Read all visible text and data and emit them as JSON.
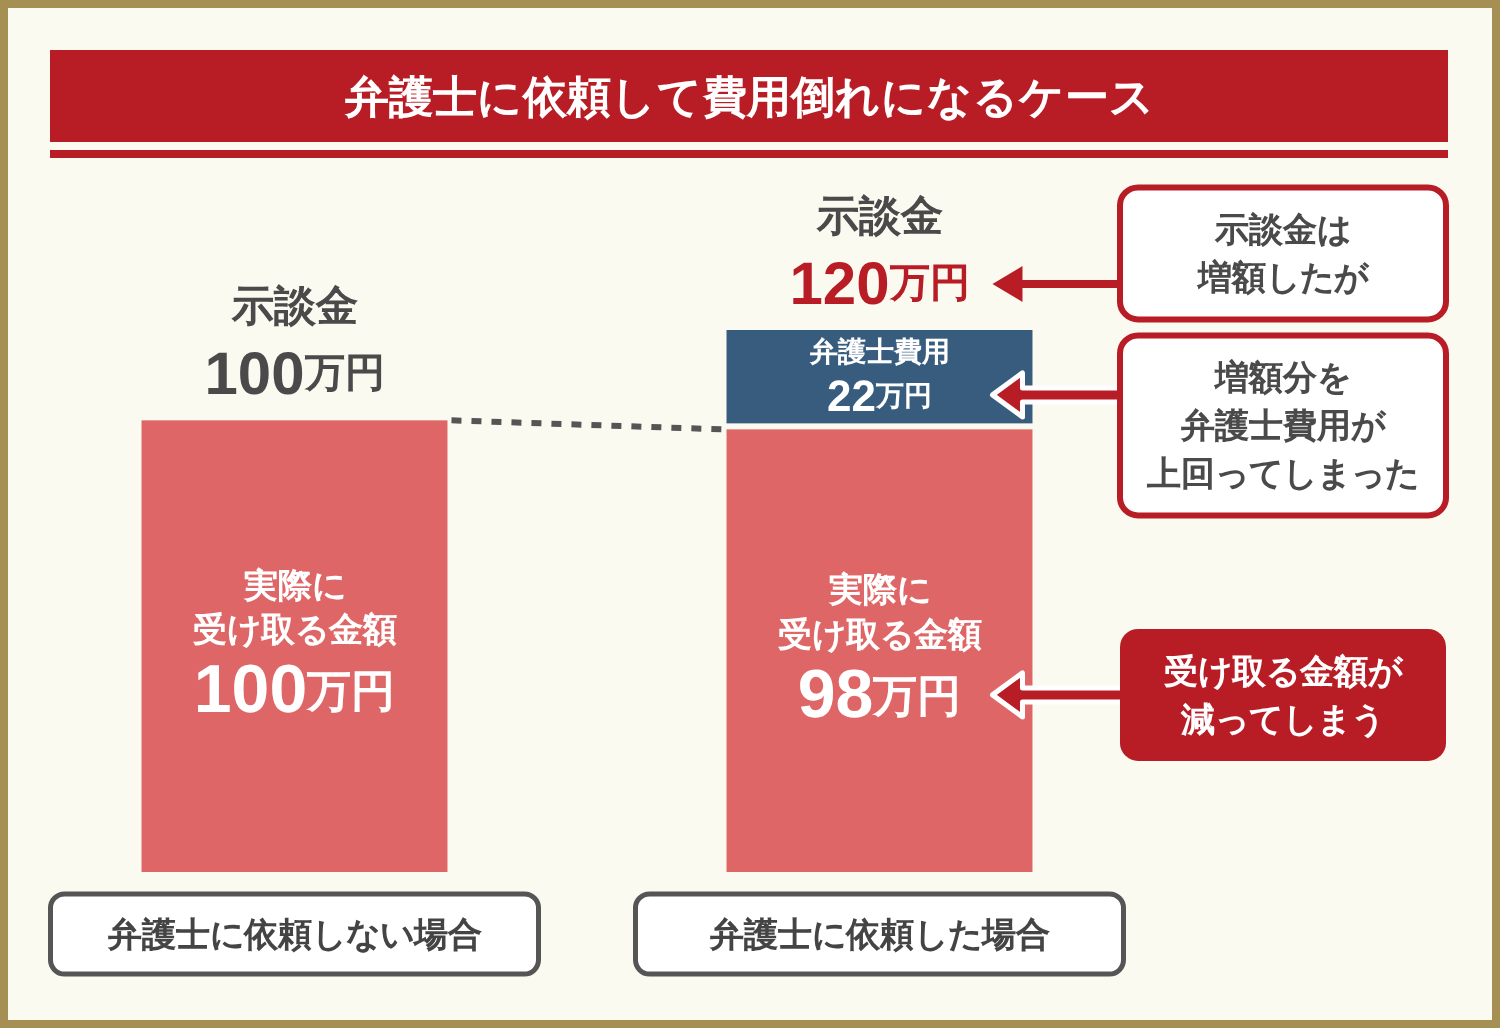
{
  "chart_data": {
    "type": "bar",
    "title": "弁護士に依頼して費用倒れになるケース",
    "categories": [
      "弁護士に依頼しない場合",
      "弁護士に依頼した場合"
    ],
    "stacked": true,
    "series": [
      {
        "name": "実際に受け取る金額",
        "color": "#df6666",
        "values": [
          100,
          98
        ],
        "value_labels": [
          "100万円",
          "98万円"
        ]
      },
      {
        "name": "弁護士費用",
        "color": "#375c7e",
        "values": [
          null,
          22
        ],
        "value_labels": [
          null,
          "22万円"
        ]
      }
    ],
    "totals": [
      "示談金100万円",
      "示談金120万円"
    ],
    "annotations": [
      "示談金は増額したが",
      "増額分を弁護士費用が上回ってしまった",
      "受け取る金額が減ってしまう"
    ]
  }
}
